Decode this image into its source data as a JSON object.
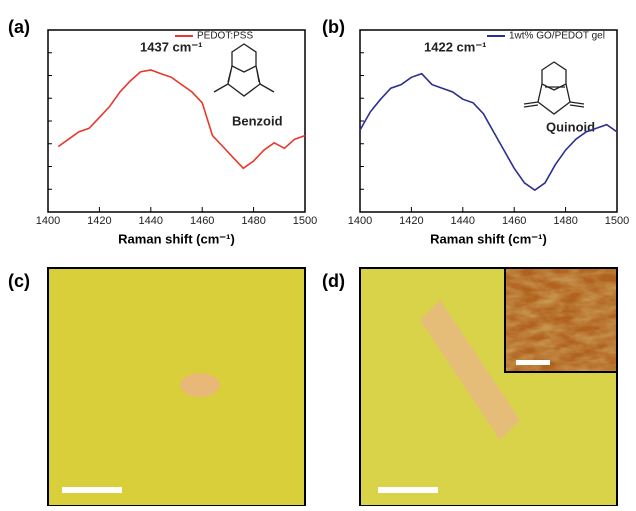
{
  "chart_data": [
    {
      "type": "line",
      "panel": "(a)",
      "x_label": "Raman shift (cm⁻¹)",
      "x": [
        1404,
        1408,
        1412,
        1416,
        1420,
        1424,
        1428,
        1432,
        1436,
        1440,
        1444,
        1448,
        1452,
        1456,
        1460,
        1464,
        1468,
        1472,
        1476,
        1480,
        1484,
        1488,
        1492,
        1496,
        1500
      ],
      "series": [
        {
          "name": "PEDOT:PSS",
          "color": "#e8382b",
          "values": [
            36,
            40,
            44,
            46,
            52,
            58,
            66,
            72,
            77,
            78,
            76,
            74,
            70,
            66,
            60,
            42,
            36,
            30,
            24,
            28,
            34,
            38,
            35,
            40,
            42
          ]
        }
      ],
      "xlim": [
        1400,
        1500
      ],
      "xticks": [
        1400,
        1420,
        1440,
        1460,
        1480,
        1500
      ],
      "ylim": [
        0,
        100
      ],
      "legend": "upper right",
      "annotations": [
        "1437 cm⁻¹",
        "Benzoid"
      ]
    },
    {
      "type": "line",
      "panel": "(b)",
      "x_label": "Raman shift (cm⁻¹)",
      "x": [
        1400,
        1404,
        1408,
        1412,
        1416,
        1420,
        1424,
        1428,
        1432,
        1436,
        1440,
        1444,
        1448,
        1452,
        1456,
        1460,
        1464,
        1468,
        1472,
        1476,
        1480,
        1484,
        1488,
        1492,
        1496,
        1500
      ],
      "series": [
        {
          "name": "1wt% GO/PEDOT gel",
          "color": "#2b2f8f",
          "values": [
            45,
            55,
            62,
            68,
            70,
            74,
            76,
            70,
            68,
            66,
            62,
            60,
            54,
            44,
            34,
            24,
            16,
            12,
            16,
            26,
            34,
            40,
            44,
            46,
            48,
            44
          ]
        }
      ],
      "xlim": [
        1400,
        1500
      ],
      "xticks": [
        1400,
        1420,
        1440,
        1460,
        1480,
        1500
      ],
      "ylim": [
        0,
        100
      ],
      "legend": "upper right",
      "annotations": [
        "1422 cm⁻¹",
        "Quinoid"
      ]
    }
  ],
  "images": [
    {
      "panel": "(c)"
    },
    {
      "panel": "(d)"
    }
  ]
}
